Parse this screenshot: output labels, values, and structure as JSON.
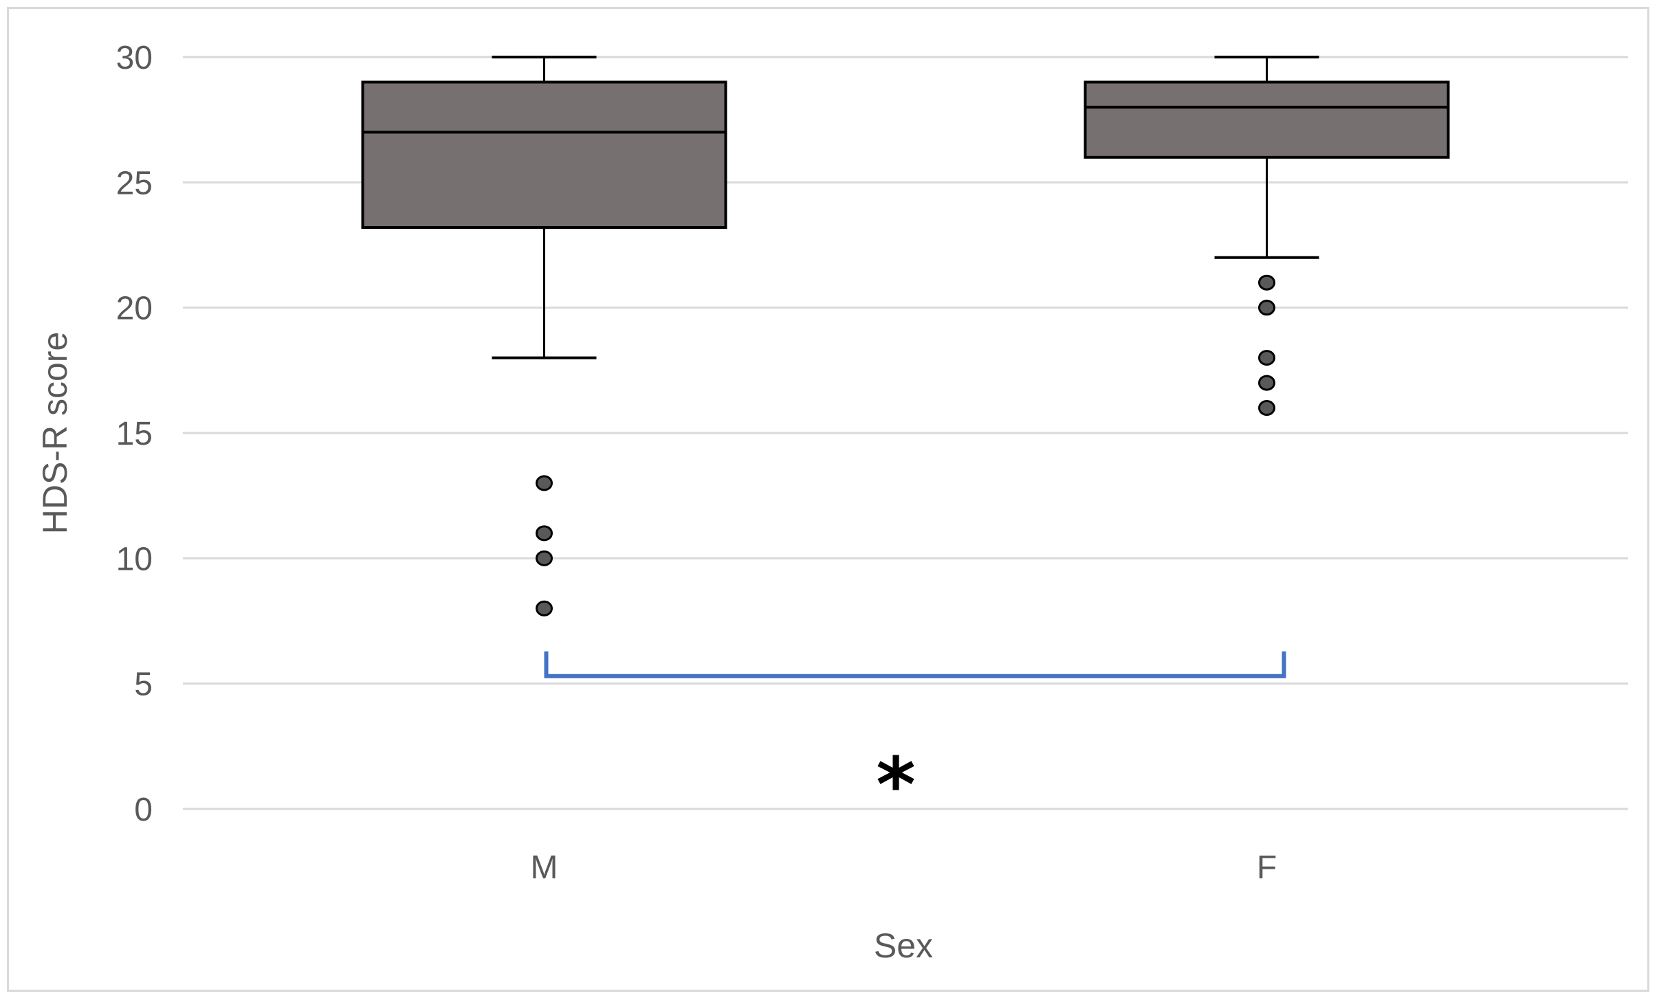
{
  "chart_data": {
    "type": "box",
    "title": "",
    "xlabel": "Sex",
    "ylabel": "HDS-R score",
    "ylim": [
      0,
      30
    ],
    "yticks": [
      0,
      5,
      10,
      15,
      20,
      25,
      30
    ],
    "grid": true,
    "categories": [
      "M",
      "F"
    ],
    "boxes": [
      {
        "category": "M",
        "whisker_low": 18,
        "q1": 23.2,
        "median": 27,
        "q3": 29,
        "whisker_high": 30,
        "outliers": [
          13,
          11,
          10,
          8
        ]
      },
      {
        "category": "F",
        "whisker_low": 22,
        "q1": 26,
        "median": 28,
        "q3": 29,
        "whisker_high": 30,
        "outliers": [
          21,
          20,
          18,
          17,
          16
        ]
      }
    ],
    "significance": {
      "between": [
        "M",
        "F"
      ],
      "level": 5.3,
      "label": "*"
    },
    "colors": {
      "box_fill": "#767070",
      "grid": "#d9d9d9",
      "bracket": "#4472c4",
      "outlier": "#595959"
    }
  }
}
